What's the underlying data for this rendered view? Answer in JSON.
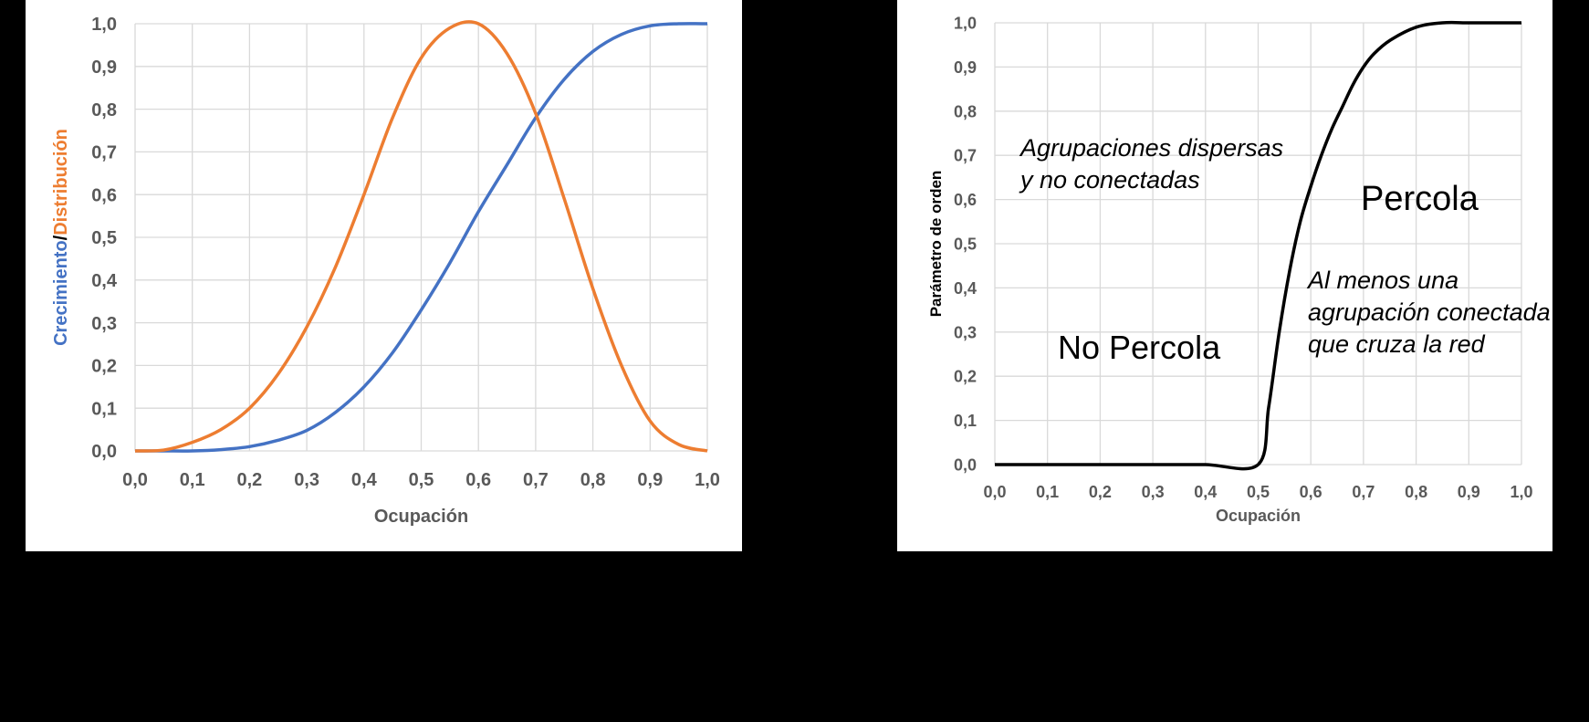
{
  "chart_data": [
    {
      "type": "line",
      "xlabel": "Ocupación",
      "ylabel_parts": [
        "Crecimiento",
        "/",
        "Distribución"
      ],
      "xlim": [
        0,
        1
      ],
      "ylim": [
        0,
        1
      ],
      "grid": true,
      "x_ticks": [
        "0,0",
        "0,1",
        "0,2",
        "0,3",
        "0,4",
        "0,5",
        "0,6",
        "0,7",
        "0,8",
        "0,9",
        "1,0"
      ],
      "y_ticks": [
        "0,0",
        "0,1",
        "0,2",
        "0,3",
        "0,4",
        "0,5",
        "0,6",
        "0,7",
        "0,8",
        "0,9",
        "1,0"
      ],
      "x": [
        0.0,
        0.05,
        0.1,
        0.15,
        0.2,
        0.25,
        0.3,
        0.35,
        0.4,
        0.45,
        0.5,
        0.55,
        0.6,
        0.65,
        0.7,
        0.75,
        0.8,
        0.85,
        0.9,
        0.95,
        1.0
      ],
      "series": [
        {
          "color": "#4472c4",
          "values": [
            0.0,
            0.0,
            0.0,
            0.003,
            0.01,
            0.025,
            0.048,
            0.09,
            0.15,
            0.23,
            0.33,
            0.44,
            0.56,
            0.67,
            0.78,
            0.87,
            0.935,
            0.975,
            0.995,
            1.0,
            1.0
          ]
        },
        {
          "color": "#ed7d31",
          "values": [
            0.0,
            0.002,
            0.02,
            0.05,
            0.1,
            0.18,
            0.29,
            0.43,
            0.6,
            0.78,
            0.92,
            0.99,
            1.0,
            0.93,
            0.79,
            0.59,
            0.38,
            0.2,
            0.07,
            0.015,
            0.0
          ]
        }
      ],
      "ylabel_colors": [
        "#4472c4",
        "#000000",
        "#ed7d31"
      ]
    },
    {
      "type": "line",
      "xlabel": "Ocupación",
      "ylabel": "Parámetro de orden",
      "xlim": [
        0,
        1
      ],
      "ylim": [
        0,
        1
      ],
      "grid": true,
      "x_ticks": [
        "0,0",
        "0,1",
        "0,2",
        "0,3",
        "0,4",
        "0,5",
        "0,6",
        "0,7",
        "0,8",
        "0,9",
        "1,0"
      ],
      "y_ticks": [
        "0,0",
        "0,1",
        "0,2",
        "0,3",
        "0,4",
        "0,5",
        "0,6",
        "0,7",
        "0,8",
        "0,9",
        "1,0"
      ],
      "x": [
        0.0,
        0.1,
        0.2,
        0.3,
        0.4,
        0.5,
        0.52,
        0.54,
        0.56,
        0.58,
        0.6,
        0.62,
        0.64,
        0.66,
        0.68,
        0.7,
        0.72,
        0.75,
        0.8,
        0.85,
        0.9,
        0.95,
        1.0
      ],
      "series": [
        {
          "color": "#000000",
          "values": [
            0.0,
            0.0,
            0.0,
            0.0,
            0.0,
            0.0,
            0.13,
            0.3,
            0.44,
            0.55,
            0.63,
            0.7,
            0.76,
            0.81,
            0.86,
            0.9,
            0.93,
            0.96,
            0.99,
            1.0,
            1.0,
            1.0,
            1.0
          ]
        }
      ],
      "annotations": [
        {
          "lines": [
            "Agrupaciones dispersas",
            "y no conectadas"
          ],
          "style": "italic"
        },
        {
          "lines": [
            "Percola"
          ],
          "style": "normal"
        },
        {
          "lines": [
            "Al menos una",
            "agrupación conectada",
            "que cruza  la red"
          ],
          "style": "italic"
        },
        {
          "lines": [
            "No Percola"
          ],
          "style": "normal"
        }
      ]
    }
  ]
}
